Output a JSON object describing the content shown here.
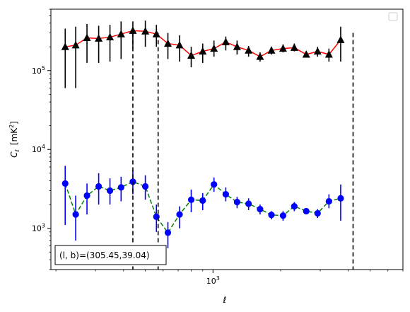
{
  "chart_data": {
    "type": "scatter",
    "title": "",
    "xlabel": "ℓ",
    "ylabel_main": "C",
    "ylabel_sub": "ℓ",
    "ylabel_unit_pre": "[mK",
    "ylabel_unit_sup": "2",
    "ylabel_unit_post": "]",
    "xscale": "log",
    "yscale": "log",
    "xlim": [
      190,
      7000
    ],
    "ylim": [
      300,
      600000
    ],
    "x_ticks": [
      {
        "value": 1000,
        "base": "10",
        "exp": "3"
      }
    ],
    "y_ticks": [
      {
        "value": 1000,
        "base": "10",
        "exp": "3"
      },
      {
        "value": 10000,
        "base": "10",
        "exp": "4"
      },
      {
        "value": 100000,
        "base": "10",
        "exp": "5"
      }
    ],
    "grid": false,
    "legend_position": "top-right",
    "annotation": "(l, b)=(305.45,39.04)",
    "vlines": [
      440,
      570,
      4200
    ],
    "series": [
      {
        "marker": "triangle",
        "marker_color": "#000000",
        "line_color": "#ff0000",
        "line_style": "solid",
        "errorbar_color": "#000000",
        "points": [
          {
            "x": 220,
            "y": 200000,
            "lo": 60000,
            "hi": 340000
          },
          {
            "x": 245,
            "y": 210000,
            "lo": 60000,
            "hi": 360000
          },
          {
            "x": 275,
            "y": 260000,
            "lo": 125000,
            "hi": 390000
          },
          {
            "x": 310,
            "y": 255000,
            "lo": 125000,
            "hi": 370000
          },
          {
            "x": 348,
            "y": 265000,
            "lo": 130000,
            "hi": 380000
          },
          {
            "x": 390,
            "y": 290000,
            "lo": 140000,
            "hi": 420000
          },
          {
            "x": 440,
            "y": 320000,
            "lo": 190000,
            "hi": 420000
          },
          {
            "x": 500,
            "y": 315000,
            "lo": 200000,
            "hi": 430000
          },
          {
            "x": 560,
            "y": 290000,
            "lo": 200000,
            "hi": 380000
          },
          {
            "x": 630,
            "y": 220000,
            "lo": 140000,
            "hi": 300000
          },
          {
            "x": 710,
            "y": 210000,
            "lo": 130000,
            "hi": 280000
          },
          {
            "x": 800,
            "y": 155000,
            "lo": 110000,
            "hi": 200000
          },
          {
            "x": 900,
            "y": 175000,
            "lo": 125000,
            "hi": 220000
          },
          {
            "x": 1010,
            "y": 190000,
            "lo": 150000,
            "hi": 240000
          },
          {
            "x": 1140,
            "y": 230000,
            "lo": 180000,
            "hi": 270000
          },
          {
            "x": 1280,
            "y": 200000,
            "lo": 160000,
            "hi": 240000
          },
          {
            "x": 1440,
            "y": 180000,
            "lo": 150000,
            "hi": 205000
          },
          {
            "x": 1620,
            "y": 150000,
            "lo": 130000,
            "hi": 170000
          },
          {
            "x": 1820,
            "y": 180000,
            "lo": 160000,
            "hi": 200000
          },
          {
            "x": 2050,
            "y": 190000,
            "lo": 170000,
            "hi": 215000
          },
          {
            "x": 2300,
            "y": 195000,
            "lo": 175000,
            "hi": 220000
          },
          {
            "x": 2600,
            "y": 160000,
            "lo": 150000,
            "hi": 175000
          },
          {
            "x": 2920,
            "y": 175000,
            "lo": 150000,
            "hi": 200000
          },
          {
            "x": 3280,
            "y": 160000,
            "lo": 130000,
            "hi": 190000
          },
          {
            "x": 3700,
            "y": 245000,
            "lo": 130000,
            "hi": 360000
          }
        ]
      },
      {
        "marker": "circle",
        "marker_color": "#0000ff",
        "line_color": "#008000",
        "line_style": "dashed",
        "errorbar_color": "#0000ff",
        "points": [
          {
            "x": 220,
            "y": 3700,
            "lo": 1100,
            "hi": 6200
          },
          {
            "x": 245,
            "y": 1500,
            "lo": 700,
            "hi": 2600
          },
          {
            "x": 275,
            "y": 2600,
            "lo": 1500,
            "hi": 3700
          },
          {
            "x": 310,
            "y": 3400,
            "lo": 2000,
            "hi": 5000
          },
          {
            "x": 348,
            "y": 3000,
            "lo": 2000,
            "hi": 4300
          },
          {
            "x": 390,
            "y": 3300,
            "lo": 2200,
            "hi": 4500
          },
          {
            "x": 440,
            "y": 3900,
            "lo": 2700,
            "hi": 5500
          },
          {
            "x": 500,
            "y": 3400,
            "lo": 2300,
            "hi": 4700
          },
          {
            "x": 560,
            "y": 1400,
            "lo": 900,
            "hi": 2000
          },
          {
            "x": 630,
            "y": 880,
            "lo": 560,
            "hi": 1200
          },
          {
            "x": 710,
            "y": 1500,
            "lo": 1000,
            "hi": 1900
          },
          {
            "x": 800,
            "y": 2300,
            "lo": 1600,
            "hi": 3100
          },
          {
            "x": 900,
            "y": 2250,
            "lo": 1700,
            "hi": 2800
          },
          {
            "x": 1010,
            "y": 3600,
            "lo": 2900,
            "hi": 4400
          },
          {
            "x": 1140,
            "y": 2700,
            "lo": 2200,
            "hi": 3300
          },
          {
            "x": 1280,
            "y": 2150,
            "lo": 1800,
            "hi": 2500
          },
          {
            "x": 1440,
            "y": 2050,
            "lo": 1700,
            "hi": 2400
          },
          {
            "x": 1620,
            "y": 1750,
            "lo": 1500,
            "hi": 2000
          },
          {
            "x": 1820,
            "y": 1480,
            "lo": 1300,
            "hi": 1650
          },
          {
            "x": 2050,
            "y": 1450,
            "lo": 1250,
            "hi": 1650
          },
          {
            "x": 2300,
            "y": 1900,
            "lo": 1650,
            "hi": 2150
          },
          {
            "x": 2600,
            "y": 1650,
            "lo": 1500,
            "hi": 1800
          },
          {
            "x": 2920,
            "y": 1550,
            "lo": 1350,
            "hi": 1750
          },
          {
            "x": 3280,
            "y": 2200,
            "lo": 1800,
            "hi": 2700
          },
          {
            "x": 3700,
            "y": 2400,
            "lo": 1250,
            "hi": 3600
          }
        ]
      }
    ]
  }
}
